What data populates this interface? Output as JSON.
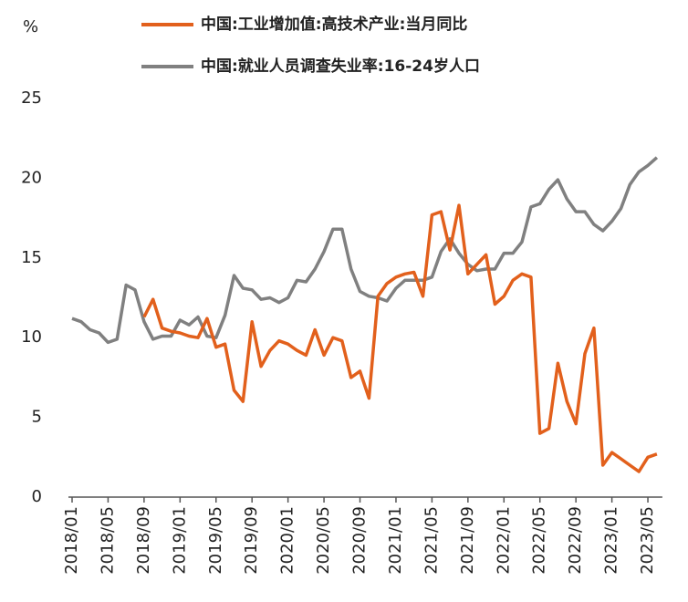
{
  "chart_data": {
    "type": "line",
    "y_unit": "%",
    "categories": [
      "2018/01",
      null,
      null,
      null,
      "2018/05",
      null,
      null,
      null,
      "2018/09",
      null,
      null,
      null,
      "2019/01",
      null,
      null,
      null,
      "2019/05",
      null,
      null,
      null,
      "2019/09",
      null,
      null,
      null,
      "2020/01",
      null,
      null,
      null,
      "2020/05",
      null,
      null,
      null,
      "2020/09",
      null,
      null,
      null,
      "2021/01",
      null,
      null,
      null,
      "2021/05",
      null,
      null,
      null,
      "2021/09",
      null,
      null,
      null,
      "2022/01",
      null,
      null,
      null,
      "2022/05",
      null,
      null,
      null,
      "2022/09",
      null,
      null,
      null,
      "2023/01",
      null,
      null,
      null,
      "2023/05",
      null
    ],
    "series": [
      {
        "name": "中国:工业增加值:高技术产业:当月同比",
        "color": "#e2601c",
        "values": [
          null,
          null,
          null,
          null,
          null,
          null,
          null,
          null,
          11.3,
          12.4,
          10.6,
          10.4,
          10.3,
          10.1,
          10.0,
          11.2,
          9.4,
          9.6,
          6.7,
          6.0,
          11.0,
          8.2,
          9.2,
          9.8,
          9.6,
          9.2,
          8.9,
          10.5,
          8.9,
          10.0,
          9.8,
          7.5,
          7.9,
          6.2,
          12.6,
          13.4,
          13.8,
          14.0,
          14.1,
          12.6,
          17.7,
          17.9,
          15.5,
          18.3,
          14.0,
          14.6,
          15.2,
          12.1,
          12.6,
          13.6,
          14.0,
          13.8,
          4.0,
          4.3,
          8.4,
          6.0,
          4.6,
          9.0,
          10.6,
          2.0,
          2.8,
          2.4,
          2.0,
          1.6,
          2.5,
          2.7
        ]
      },
      {
        "name": "中国:就业人员调查失业率:16-24岁人口",
        "color": "#808080",
        "values": [
          11.2,
          11.0,
          10.5,
          10.3,
          9.7,
          9.9,
          13.3,
          13.0,
          11.0,
          9.9,
          10.1,
          10.1,
          11.1,
          10.8,
          11.3,
          10.1,
          10.0,
          11.4,
          13.9,
          13.1,
          13.0,
          12.4,
          12.5,
          12.2,
          12.5,
          13.6,
          13.5,
          14.3,
          15.4,
          16.8,
          16.8,
          14.3,
          12.9,
          12.6,
          12.5,
          12.3,
          13.1,
          13.6,
          13.6,
          13.6,
          13.8,
          15.4,
          16.2,
          15.3,
          14.6,
          14.2,
          14.3,
          14.3,
          15.3,
          15.3,
          16.0,
          18.2,
          18.4,
          19.3,
          19.9,
          18.7,
          17.9,
          17.9,
          17.1,
          16.7,
          17.3,
          18.1,
          19.6,
          20.4,
          20.8,
          21.3
        ]
      }
    ],
    "ylim": [
      0,
      25
    ],
    "yticks": [
      0,
      5,
      10,
      15,
      20,
      25
    ],
    "grid": false
  }
}
